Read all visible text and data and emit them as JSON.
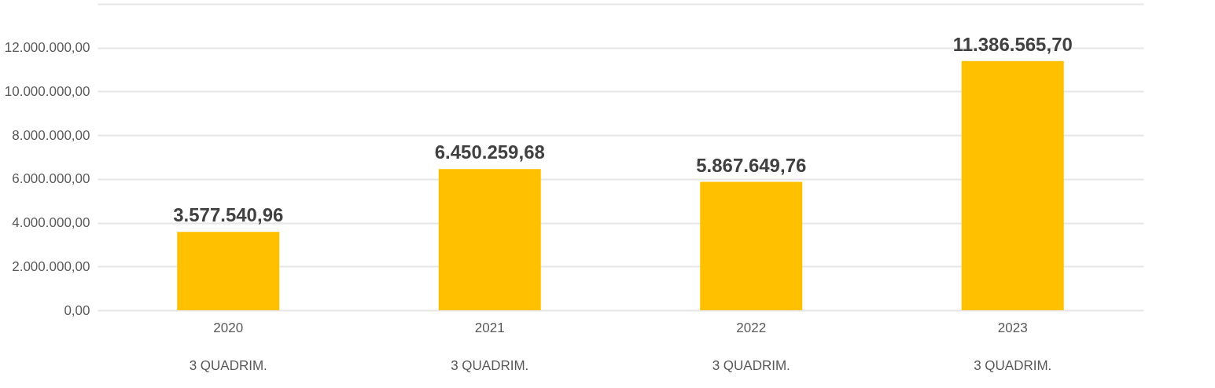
{
  "chart_data": {
    "type": "bar",
    "categories": [
      "2020\n3 QUADRIM.",
      "2021\n3 QUADRIM.",
      "2022\n3 QUADRIM.",
      "2023\n3 QUADRIM."
    ],
    "values": [
      3577540.96,
      6450259.68,
      5867649.76,
      11386565.7
    ],
    "value_labels": [
      "3.577.540,96",
      "6.450.259,68",
      "5.867.649,76",
      "11.386.565,70"
    ],
    "color": "#ffc000",
    "ylim": [
      0,
      14000000
    ],
    "yticks": [
      {
        "value": 0,
        "label": "0,00"
      },
      {
        "value": 2000000,
        "label": "2.000.000,00"
      },
      {
        "value": 4000000,
        "label": "4.000.000,00"
      },
      {
        "value": 6000000,
        "label": "6.000.000,00"
      },
      {
        "value": 8000000,
        "label": "8.000.000,00"
      },
      {
        "value": 10000000,
        "label": "10.000.000,00"
      },
      {
        "value": 12000000,
        "label": "12.000.000,00"
      },
      {
        "value": 14000000,
        "label": null
      }
    ],
    "grid": "y"
  }
}
